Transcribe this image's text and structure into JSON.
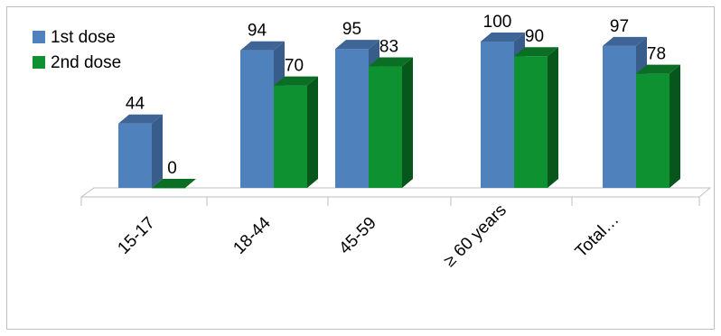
{
  "chart_data": {
    "type": "bar",
    "style": "3d-clustered-column",
    "title": "",
    "xlabel": "",
    "ylabel": "",
    "categories": [
      "15-17",
      "18-44",
      "45-59",
      "≥ 60 years",
      "Total…"
    ],
    "series": [
      {
        "name": "1st dose",
        "color": "#4F81BD",
        "side_color": "#385D8A",
        "top_color": "#3E6596",
        "values": [
          44,
          94,
          95,
          100,
          97
        ]
      },
      {
        "name": "2nd dose",
        "color": "#0E9130",
        "side_color": "#07561B",
        "top_color": "#0A6E24",
        "values": [
          0,
          70,
          83,
          90,
          78
        ]
      }
    ],
    "ylim": [
      0,
      100
    ],
    "grid": false,
    "legend": "top-left",
    "data_labels": true,
    "x_tick_rotation": -45
  }
}
